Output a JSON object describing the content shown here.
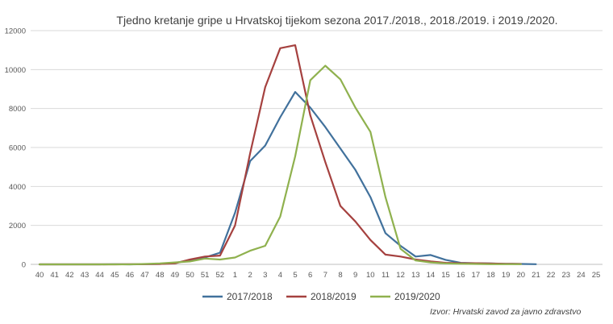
{
  "chart_data": {
    "type": "line",
    "title": "Tjedno kretanje gripe u Hrvatskoj tijekom sezona 2017./2018., 2018./2019. i 2019./2020.",
    "xlabel": "",
    "ylabel": "",
    "ylim": [
      0,
      12000
    ],
    "yticks": [
      0,
      2000,
      4000,
      6000,
      8000,
      10000,
      12000
    ],
    "grid": true,
    "legend_position": "bottom",
    "categories": [
      "40",
      "41",
      "42",
      "43",
      "44",
      "45",
      "46",
      "47",
      "48",
      "49",
      "50",
      "51",
      "52",
      "1",
      "2",
      "3",
      "4",
      "5",
      "6",
      "7",
      "8",
      "9",
      "10",
      "11",
      "12",
      "13",
      "14",
      "15",
      "16",
      "17",
      "18",
      "19",
      "20",
      "21",
      "22",
      "23",
      "24",
      "25"
    ],
    "series": [
      {
        "name": "2017/2018",
        "color": "#41719c",
        "values": [
          0,
          0,
          0,
          0,
          0,
          10,
          0,
          10,
          20,
          80,
          200,
          350,
          600,
          2650,
          5300,
          6100,
          7550,
          8850,
          8050,
          7050,
          5950,
          4850,
          3450,
          1600,
          950,
          400,
          480,
          230,
          80,
          60,
          50,
          30,
          20,
          10,
          null,
          null,
          null,
          null
        ]
      },
      {
        "name": "2018/2019",
        "color": "#a5413f",
        "values": [
          0,
          0,
          0,
          0,
          0,
          0,
          10,
          10,
          20,
          50,
          250,
          400,
          450,
          2000,
          5700,
          9100,
          11100,
          11250,
          7650,
          5250,
          3000,
          2200,
          1250,
          500,
          400,
          250,
          150,
          80,
          60,
          60,
          40,
          30,
          20,
          null,
          null,
          null,
          null,
          null
        ]
      },
      {
        "name": "2019/2020",
        "color": "#8fb14e",
        "values": [
          0,
          0,
          0,
          0,
          0,
          0,
          0,
          20,
          50,
          100,
          150,
          300,
          250,
          350,
          700,
          950,
          2450,
          5550,
          9450,
          10200,
          9500,
          8050,
          6800,
          3450,
          800,
          200,
          100,
          50,
          30,
          20,
          10,
          10,
          10,
          null,
          null,
          null,
          null,
          null
        ]
      }
    ],
    "source": "Izvor: Hrvatski zavod za javno zdravstvo"
  }
}
